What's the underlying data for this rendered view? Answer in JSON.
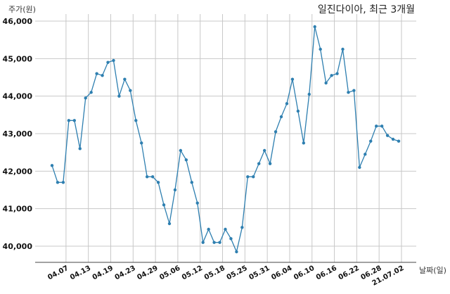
{
  "chart_data": {
    "type": "line",
    "title": "일진다이아, 최근 3개월",
    "ylabel": "주가(원)",
    "xlabel": "날짜(일)",
    "ylim": [
      39600,
      46200
    ],
    "yticks": [
      40000,
      41000,
      42000,
      43000,
      44000,
      45000,
      46000
    ],
    "ytick_labels": [
      "40,000",
      "41,000",
      "42,000",
      "43,000",
      "44,000",
      "45,000",
      "46,000"
    ],
    "xtick_positions": [
      2.5,
      6.5,
      10.5,
      14.5,
      18.5,
      22.5,
      26.5,
      30.5,
      34.5,
      38.5,
      42.5,
      46.5,
      50.5,
      54.5,
      58.5,
      62.5
    ],
    "xtick_labels": [
      "04.07",
      "04.13",
      "04.19",
      "04.23",
      "04.29",
      "05.06",
      "05.12",
      "05.18",
      "05.25",
      "05.31",
      "06.04",
      "06.10",
      "06.16",
      "06.22",
      "06.28",
      "21.07.02"
    ],
    "grid": true,
    "line_color": "#2e7fb0",
    "series": [
      {
        "values": [
          42150,
          41700,
          41700,
          43350,
          43350,
          42600,
          43950,
          44100,
          44600,
          44550,
          44900,
          44950,
          44000,
          44450,
          44150,
          43350,
          42750,
          41850,
          41850,
          41700,
          41100,
          40600,
          41500,
          42550,
          42300,
          41700,
          41150,
          40100,
          40450,
          40100,
          40100,
          40450,
          40200,
          39850,
          40500,
          41850,
          41850,
          42200,
          42550,
          42200,
          43050,
          43450,
          43800,
          44450,
          43600,
          42750,
          44050,
          45850,
          45250,
          44350,
          44550,
          44600,
          45250,
          44100,
          44150,
          42100,
          42450,
          42800,
          43200,
          43200,
          42950,
          42850,
          42800
        ]
      }
    ]
  }
}
